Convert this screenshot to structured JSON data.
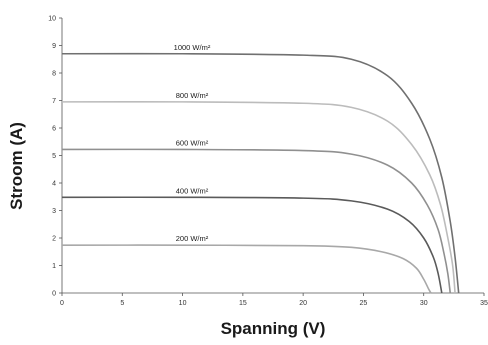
{
  "chart_data": {
    "type": "line",
    "xlabel": "Spanning (V)",
    "ylabel": "Stroom (A)",
    "xlim": [
      0,
      35
    ],
    "ylim": [
      0,
      10
    ],
    "xticks": [
      0,
      5,
      10,
      15,
      20,
      25,
      30,
      35
    ],
    "yticks": [
      0,
      1,
      2,
      3,
      4,
      5,
      6,
      7,
      8,
      9,
      10
    ],
    "grid": false,
    "legend": "none",
    "series": [
      {
        "name": "1000 W/m²",
        "color": "#707070",
        "points": [
          [
            0,
            8.7
          ],
          [
            10,
            8.7
          ],
          [
            20,
            8.65
          ],
          [
            24,
            8.5
          ],
          [
            27,
            7.9
          ],
          [
            29,
            6.9
          ],
          [
            30.5,
            5.6
          ],
          [
            31.5,
            4.2
          ],
          [
            32.2,
            2.6
          ],
          [
            32.6,
            1.3
          ],
          [
            32.9,
            0
          ]
        ]
      },
      {
        "name": "800 W/m²",
        "color": "#bcbcbc",
        "points": [
          [
            0,
            6.95
          ],
          [
            10,
            6.95
          ],
          [
            20,
            6.9
          ],
          [
            24,
            6.75
          ],
          [
            27,
            6.25
          ],
          [
            29,
            5.4
          ],
          [
            30.5,
            4.3
          ],
          [
            31.4,
            3.2
          ],
          [
            32.0,
            2.0
          ],
          [
            32.4,
            1.0
          ],
          [
            32.6,
            0
          ]
        ]
      },
      {
        "name": "600 W/m²",
        "color": "#909090",
        "points": [
          [
            0,
            5.22
          ],
          [
            10,
            5.22
          ],
          [
            20,
            5.18
          ],
          [
            24,
            5.05
          ],
          [
            27,
            4.65
          ],
          [
            29,
            4.0
          ],
          [
            30.3,
            3.2
          ],
          [
            31.2,
            2.3
          ],
          [
            31.7,
            1.4
          ],
          [
            32.0,
            0.7
          ],
          [
            32.2,
            0
          ]
        ]
      },
      {
        "name": "400 W/m²",
        "color": "#5a5a5a",
        "points": [
          [
            0,
            3.48
          ],
          [
            10,
            3.48
          ],
          [
            20,
            3.45
          ],
          [
            24,
            3.35
          ],
          [
            27,
            3.05
          ],
          [
            28.8,
            2.6
          ],
          [
            30.0,
            2.0
          ],
          [
            30.8,
            1.3
          ],
          [
            31.2,
            0.7
          ],
          [
            31.5,
            0
          ]
        ]
      },
      {
        "name": "200 W/m²",
        "color": "#a8a8a8",
        "points": [
          [
            0,
            1.74
          ],
          [
            10,
            1.74
          ],
          [
            20,
            1.72
          ],
          [
            24,
            1.66
          ],
          [
            26.5,
            1.5
          ],
          [
            28.3,
            1.25
          ],
          [
            29.4,
            0.9
          ],
          [
            30.0,
            0.5
          ],
          [
            30.4,
            0.15
          ],
          [
            30.6,
            0
          ]
        ]
      }
    ]
  }
}
